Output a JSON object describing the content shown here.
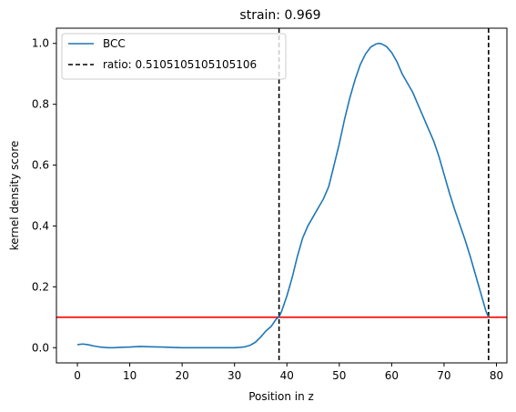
{
  "chart_data": {
    "type": "line",
    "title": "strain: 0.969",
    "xlabel": "Position in z",
    "ylabel": "kernel density score",
    "xlim": [
      -4,
      82
    ],
    "ylim": [
      -0.05,
      1.05
    ],
    "xticks": [
      0,
      10,
      20,
      30,
      40,
      50,
      60,
      70,
      80
    ],
    "xtick_labels": [
      "0",
      "10",
      "20",
      "30",
      "40",
      "50",
      "60",
      "70",
      "80"
    ],
    "yticks": [
      0.0,
      0.2,
      0.4,
      0.6,
      0.8,
      1.0
    ],
    "ytick_labels": [
      "0.0",
      "0.2",
      "0.4",
      "0.6",
      "0.8",
      "1.0"
    ],
    "grid": false,
    "legend_position": "top-left",
    "series": [
      {
        "name": "BCC",
        "color": "#1f77b4",
        "style": "solid",
        "x": [
          0,
          1,
          2,
          3,
          4,
          5,
          6,
          7,
          8,
          10,
          12,
          14,
          16,
          18,
          20,
          22,
          24,
          26,
          28,
          30,
          31,
          32,
          33,
          34,
          35,
          36,
          37,
          38,
          38.5,
          39,
          40,
          41,
          42,
          43,
          44,
          45,
          46,
          47,
          48,
          49,
          50,
          51,
          52,
          53,
          54,
          55,
          56,
          57,
          57.5,
          58,
          59,
          60,
          61,
          62,
          63,
          64,
          65,
          66,
          67,
          68,
          69,
          70,
          71,
          72,
          73,
          74,
          75,
          76,
          77,
          78,
          78.5
        ],
        "y": [
          0.01,
          0.012,
          0.01,
          0.006,
          0.003,
          0.001,
          0.0,
          0.0,
          0.001,
          0.002,
          0.004,
          0.003,
          0.002,
          0.001,
          0.0,
          0.0,
          0.0,
          0.0,
          0.0,
          0.0,
          0.001,
          0.003,
          0.008,
          0.018,
          0.035,
          0.055,
          0.07,
          0.095,
          0.1,
          0.12,
          0.17,
          0.23,
          0.3,
          0.36,
          0.4,
          0.43,
          0.46,
          0.49,
          0.53,
          0.6,
          0.67,
          0.75,
          0.82,
          0.88,
          0.93,
          0.965,
          0.988,
          0.998,
          1.0,
          0.999,
          0.99,
          0.97,
          0.94,
          0.9,
          0.87,
          0.84,
          0.8,
          0.76,
          0.72,
          0.68,
          0.63,
          0.57,
          0.51,
          0.455,
          0.405,
          0.355,
          0.3,
          0.24,
          0.18,
          0.12,
          0.1
        ]
      }
    ],
    "vlines": [
      {
        "label": "ratio: 0.5105105105105106",
        "x": [
          38.5,
          78.5
        ],
        "color": "#000000",
        "style": "dashed"
      }
    ],
    "hlines": [
      {
        "y": 0.1,
        "color": "#ff0000",
        "style": "solid"
      }
    ]
  }
}
